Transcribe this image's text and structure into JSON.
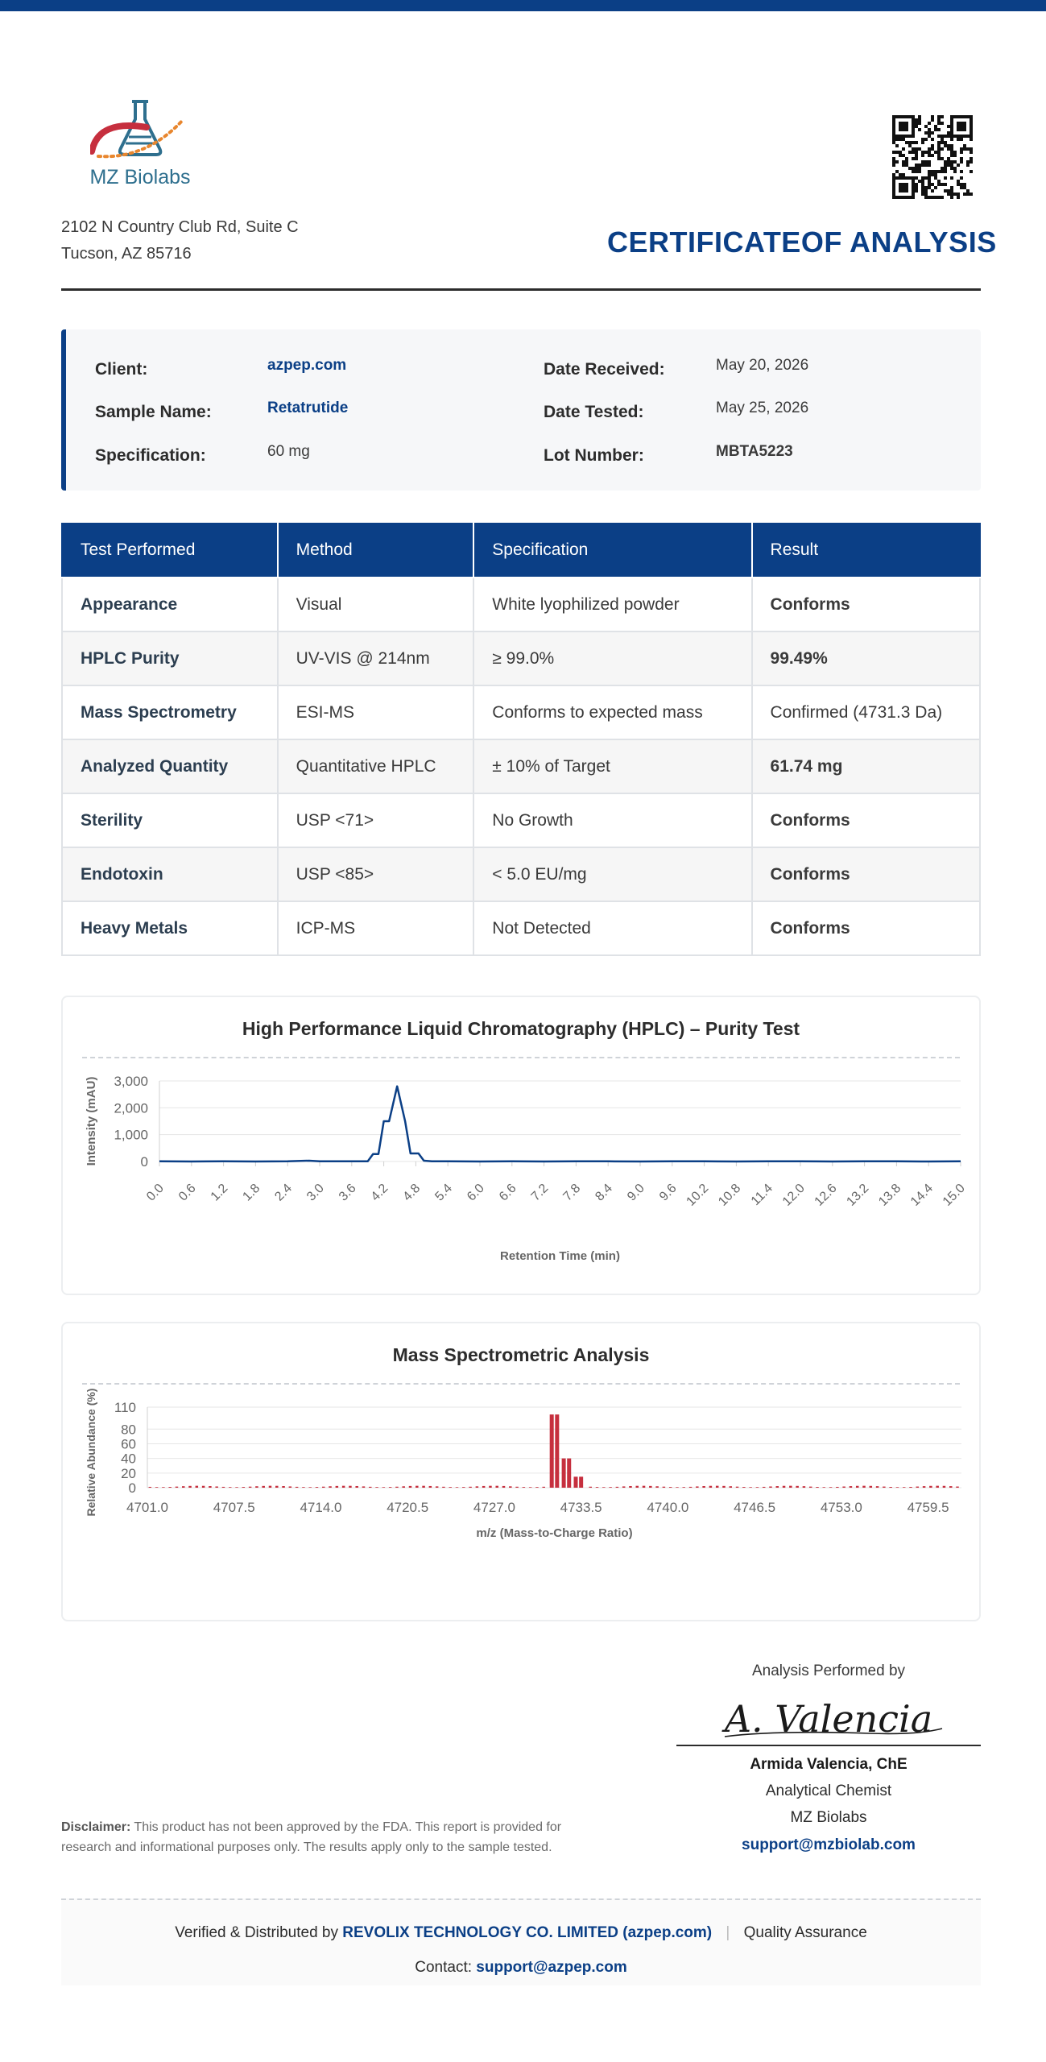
{
  "brand": {
    "name": "MZ Biolabs",
    "accent": "#0b3f86",
    "logo_icon": "flask-logo-icon"
  },
  "address": {
    "line1": "2102 N Country Club Rd, Suite C",
    "line2": "Tucson, AZ 85716"
  },
  "qr_icon": "qr-code-icon",
  "title": {
    "part1": "CERTIFICATE",
    "part2": "OF ANALYSIS"
  },
  "info": {
    "client_label": "Client:",
    "client_value": "azpep.com",
    "sample_label": "Sample Name:",
    "sample_value": "Retatrutide",
    "spec_label": "Specification:",
    "spec_value": "60 mg",
    "received_label": "Date Received:",
    "received_value": "May 20, 2026",
    "tested_label": "Date Tested:",
    "tested_value": "May 25, 2026",
    "lot_label": "Lot Number:",
    "lot_value": "MBTA5223"
  },
  "results": {
    "headers": [
      "Test Performed",
      "Method",
      "Specification",
      "Result"
    ],
    "rows": [
      {
        "test": "Appearance",
        "method": "Visual",
        "spec": "White lyophilized powder",
        "result": "Conforms"
      },
      {
        "test": "HPLC Purity",
        "method": "UV-VIS @ 214nm",
        "spec": "≥ 99.0%",
        "result": "99.49%"
      },
      {
        "test": "Mass Spectrometry",
        "method": "ESI-MS",
        "spec": "Conforms to expected mass",
        "result": "Confirmed (4731.3 Da)"
      },
      {
        "test": "Analyzed Quantity",
        "method": "Quantitative HPLC",
        "spec": "± 10% of Target",
        "result": "61.74 mg"
      },
      {
        "test": "Sterility",
        "method": "USP <71>",
        "spec": "No Growth",
        "result": "Conforms"
      },
      {
        "test": "Endotoxin",
        "method": "USP <85>",
        "spec": "< 5.0 EU/mg",
        "result": "Conforms"
      },
      {
        "test": "Heavy Metals",
        "method": "ICP-MS",
        "spec": "Not Detected",
        "result": "Conforms"
      }
    ]
  },
  "chart_data": [
    {
      "type": "line",
      "title": "High Performance Liquid Chromatography (HPLC) – Purity Test",
      "xlabel": "Retention Time (min)",
      "ylabel": "Intensity (mAU)",
      "xlim": [
        0,
        15
      ],
      "ylim": [
        0,
        3000
      ],
      "xticks": [
        "0.0",
        "0.6",
        "1.2",
        "1.8",
        "2.4",
        "3.0",
        "3.6",
        "4.2",
        "4.8",
        "5.4",
        "6.0",
        "6.6",
        "7.2",
        "7.8",
        "8.4",
        "9.0",
        "9.6",
        "10.2",
        "10.8",
        "11.4",
        "12.0",
        "12.6",
        "13.2",
        "13.8",
        "14.4",
        "15.0"
      ],
      "yticks": [
        "0",
        "1,000",
        "2,000",
        "3,000"
      ],
      "grid": true,
      "color": "#0b3f86",
      "points": [
        [
          0,
          5
        ],
        [
          0.6,
          0
        ],
        [
          1.2,
          8
        ],
        [
          1.8,
          0
        ],
        [
          2.4,
          5
        ],
        [
          2.8,
          30
        ],
        [
          3.0,
          5
        ],
        [
          3.6,
          5
        ],
        [
          3.9,
          10
        ],
        [
          4.0,
          280
        ],
        [
          4.1,
          280
        ],
        [
          4.2,
          1500
        ],
        [
          4.3,
          1500
        ],
        [
          4.45,
          2800
        ],
        [
          4.6,
          1500
        ],
        [
          4.7,
          300
        ],
        [
          4.85,
          300
        ],
        [
          4.95,
          30
        ],
        [
          5.1,
          5
        ],
        [
          5.4,
          10
        ],
        [
          6.0,
          0
        ],
        [
          6.6,
          8
        ],
        [
          7.2,
          0
        ],
        [
          7.8,
          10
        ],
        [
          8.4,
          5
        ],
        [
          9.0,
          0
        ],
        [
          9.6,
          8
        ],
        [
          10.2,
          5
        ],
        [
          10.8,
          0
        ],
        [
          11.4,
          8
        ],
        [
          12.0,
          5
        ],
        [
          12.6,
          0
        ],
        [
          13.2,
          8
        ],
        [
          13.8,
          5
        ],
        [
          14.4,
          0
        ],
        [
          15.0,
          8
        ]
      ]
    },
    {
      "type": "bar",
      "title": "Mass Spectrometric Analysis",
      "xlabel": "m/z (Mass-to-Charge Ratio)",
      "ylabel": "Relative Abundance (%)",
      "xlim": [
        4701.0,
        4762.0
      ],
      "ylim": [
        0,
        110
      ],
      "xticks": [
        "4701.0",
        "4707.5",
        "4714.0",
        "4720.5",
        "4727.0",
        "4733.5",
        "4740.0",
        "4746.5",
        "4753.0",
        "4759.5"
      ],
      "yticks": [
        "0",
        "20",
        "40",
        "60",
        "80",
        "110"
      ],
      "grid": true,
      "color": "#c62f3e",
      "peaks": [
        [
          4731.3,
          100
        ],
        [
          4731.7,
          100
        ],
        [
          4732.2,
          40
        ],
        [
          4732.6,
          40
        ],
        [
          4733.1,
          15
        ],
        [
          4733.5,
          15
        ]
      ],
      "noise_level": 2
    }
  ],
  "signature": {
    "heading": "Analysis Performed by",
    "script": "A. Valencia",
    "name": "Armida Valencia, ChE",
    "title": "Analytical Chemist",
    "org": "MZ Biolabs",
    "email": "support@mzbiolab.com"
  },
  "disclaimer": {
    "label": "Disclaimer:",
    "text": "This product has not been approved by the FDA. This report is provided for research and informational purposes only. The results apply only to the sample tested."
  },
  "footer": {
    "verified_prefix": "Verified & Distributed by",
    "distributor": "REVOLIX TECHNOLOGY CO. LIMITED (azpep.com)",
    "separator": "|",
    "qa": "Quality Assurance",
    "contact_label": "Contact:",
    "contact_email": "support@azpep.com"
  }
}
